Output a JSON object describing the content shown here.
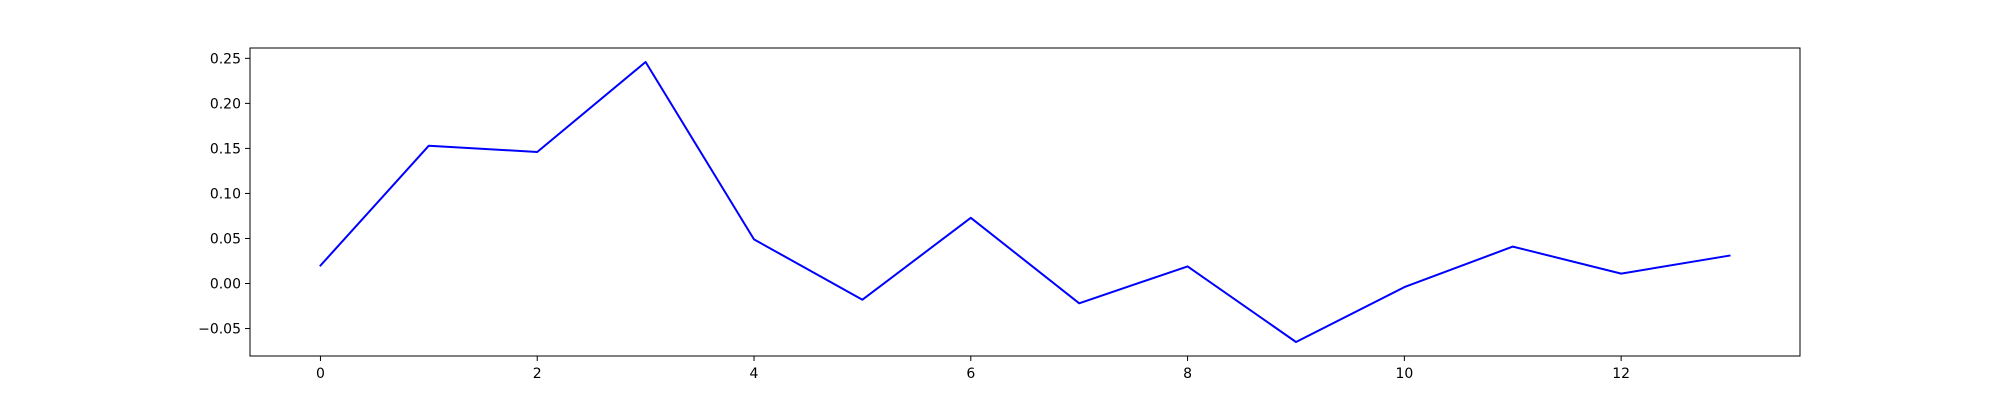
{
  "chart_data": {
    "type": "line",
    "title": "",
    "xlabel": "",
    "ylabel": "",
    "x": [
      0,
      1,
      2,
      3,
      4,
      5,
      6,
      7,
      8,
      9,
      10,
      11,
      12,
      13
    ],
    "series": [
      {
        "color": "#0000ff",
        "values": [
          0.02,
          0.153,
          0.146,
          0.246,
          0.049,
          -0.018,
          0.073,
          -0.022,
          0.019,
          -0.065,
          -0.004,
          0.041,
          0.011,
          0.031
        ]
      }
    ],
    "xlim": [
      -0.65,
      13.65
    ],
    "ylim": [
      -0.0805,
      0.2615
    ],
    "xticks": [
      0,
      2,
      4,
      6,
      8,
      10,
      12
    ],
    "xtick_labels": [
      "0",
      "2",
      "4",
      "6",
      "8",
      "10",
      "12"
    ],
    "yticks": [
      -0.05,
      0.0,
      0.05,
      0.1,
      0.15,
      0.2,
      0.25
    ],
    "ytick_labels": [
      "−0.05",
      "0.00",
      "0.05",
      "0.10",
      "0.15",
      "0.20",
      "0.25"
    ],
    "grid": false,
    "legend": "none"
  }
}
